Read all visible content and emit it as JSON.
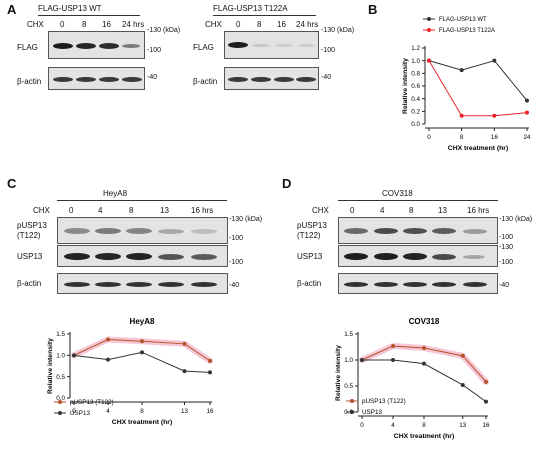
{
  "panelA": {
    "label": "A",
    "wt": {
      "title": "FLAG-USP13 WT",
      "cond_label": "CHX",
      "conds": [
        "0",
        "8",
        "16",
        "24 hrs"
      ],
      "rows": [
        "FLAG",
        "β-actin"
      ],
      "markers": [
        "130",
        "(kDa)",
        "100",
        "40"
      ]
    },
    "mut": {
      "title": "FLAG-USP13 T122A",
      "cond_label": "CHX",
      "conds": [
        "0",
        "8",
        "16",
        "24 hrs"
      ],
      "rows": [
        "FLAG",
        "β-actin"
      ],
      "markers": [
        "130",
        "(kDa)",
        "100",
        "40"
      ]
    }
  },
  "panelB": {
    "label": "B"
  },
  "panelC": {
    "label": "C",
    "cell_line": "HeyA8",
    "cond_label": "CHX",
    "conds": [
      "0",
      "4",
      "8",
      "13",
      "16 hrs"
    ],
    "rows": [
      "pUSP13\n(T122)",
      "USP13",
      "β-actin"
    ],
    "markers": [
      "130",
      "(kDa)",
      "100",
      "100",
      "40"
    ]
  },
  "panelD": {
    "label": "D",
    "cell_line": "COV318",
    "cond_label": "CHX",
    "conds": [
      "0",
      "4",
      "8",
      "13",
      "16 hrs"
    ],
    "rows": [
      "pUSP13\n(T122)",
      "USP13",
      "β-actin"
    ],
    "markers": [
      "130",
      "(kDa)",
      "100",
      "130",
      "100",
      "40"
    ]
  },
  "colors": {
    "wt": "#333333",
    "mut": "#e8232a",
    "phospho": "#b5532b",
    "total": "#333333",
    "halo": "#f6c6d6"
  },
  "chart_data": [
    {
      "id": "B",
      "type": "line",
      "title": "",
      "xlabel": "CHX treatment (hr)",
      "ylabel": "Relative intensity",
      "x": [
        0,
        8,
        16,
        24
      ],
      "ylim": [
        0,
        1.2
      ],
      "yticks": [
        "0.0",
        "0.2",
        "0.4",
        "0.6",
        "0.8",
        "1.0",
        "1.2"
      ],
      "legend": "top-right",
      "series": [
        {
          "name": "FLAG-USP13 WT",
          "values": [
            1.0,
            0.85,
            1.0,
            0.37
          ]
        },
        {
          "name": "FLAG-USP13 T122A",
          "values": [
            1.0,
            0.13,
            0.13,
            0.18
          ]
        }
      ]
    },
    {
      "id": "C",
      "type": "line",
      "title": "HeyA8",
      "xlabel": "CHX treatment (hr)",
      "ylabel": "Relative intensity",
      "x": [
        0,
        4,
        8,
        13,
        16
      ],
      "ylim": [
        0,
        1.5
      ],
      "yticks": [
        "0.0",
        "0.5",
        "1.0",
        "1.5"
      ],
      "legend": "bottom-left",
      "series": [
        {
          "name": "pUSP13 (T122)",
          "values": [
            1.0,
            1.37,
            1.33,
            1.27,
            0.87
          ]
        },
        {
          "name": "USP13",
          "values": [
            1.0,
            0.9,
            1.07,
            0.63,
            0.6
          ]
        }
      ]
    },
    {
      "id": "D",
      "type": "line",
      "title": "COV318",
      "xlabel": "CHX treatment (hr)",
      "ylabel": "Relative intensity",
      "x": [
        0,
        4,
        8,
        13,
        16
      ],
      "ylim": [
        0,
        1.5
      ],
      "yticks": [
        "0.0",
        "0.5",
        "1.0",
        "1.5"
      ],
      "legend": "bottom-left",
      "series": [
        {
          "name": "pUSP13 (T122)",
          "values": [
            1.0,
            1.27,
            1.23,
            1.08,
            0.58
          ]
        },
        {
          "name": "USP13",
          "values": [
            1.0,
            1.0,
            0.93,
            0.52,
            0.2
          ]
        }
      ]
    }
  ]
}
